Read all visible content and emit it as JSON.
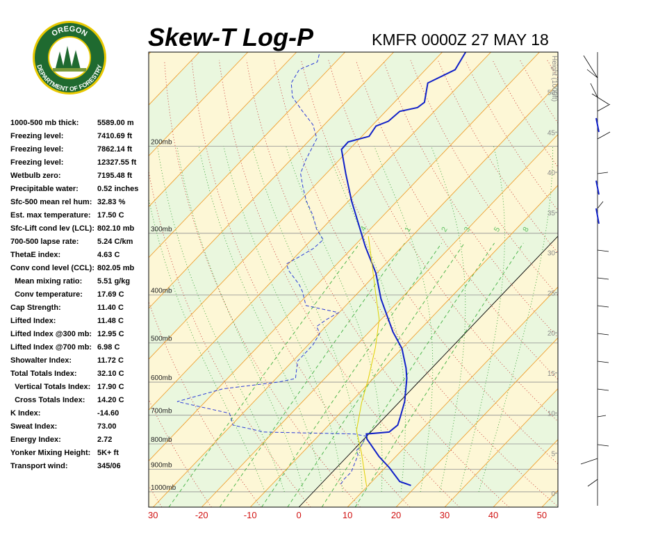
{
  "logo": {
    "top": "OREGON",
    "bottom": "DEPARTMENT OF FORESTRY"
  },
  "stats": [
    [
      "1000-500 mb thick:",
      "5589.00 m"
    ],
    [
      "Freezing level:",
      "7410.69 ft"
    ],
    [
      "Freezing level:",
      "7862.14 ft"
    ],
    [
      "Freezing level:",
      "12327.55 ft"
    ],
    [
      "Wetbulb zero:",
      "7195.48 ft"
    ],
    [
      "Precipitable water:",
      "0.52 inches"
    ],
    [
      "Sfc-500 mean rel hum:",
      "32.83 %"
    ],
    [
      "Est. max temperature:",
      "17.50 C"
    ],
    [
      "Sfc-Lift cond lev (LCL):",
      "802.10 mb"
    ],
    [
      "700-500 lapse rate:",
      "5.24 C/km"
    ],
    [
      "ThetaE index:",
      "4.63 C"
    ],
    [
      "Conv cond level (CCL):",
      "802.05 mb"
    ],
    [
      "  Mean mixing ratio:",
      "5.51 g/kg"
    ],
    [
      "  Conv temperature:",
      "17.69 C"
    ],
    [
      "Cap Strength:",
      "11.40 C"
    ],
    [
      "Lifted Index:",
      "11.48 C"
    ],
    [
      "Lifted Index @300 mb:",
      "12.95 C"
    ],
    [
      "Lifted Index @700 mb:",
      "6.98 C"
    ],
    [
      "Showalter Index:",
      "11.72 C"
    ],
    [
      "Total Totals Index:",
      "32.10 C"
    ],
    [
      "  Vertical Totals Index:",
      "17.90 C"
    ],
    [
      "  Cross Totals Index:",
      "14.20 C"
    ],
    [
      "K Index:",
      "-14.60"
    ],
    [
      "Sweat Index:",
      "73.00"
    ],
    [
      "Energy Index:",
      "2.72"
    ],
    [
      "Yonker Mixing Height:",
      "5K+ ft"
    ],
    [
      "Transport wind:",
      "345/06"
    ]
  ],
  "chart_data": {
    "type": "skew-t",
    "title": "Skew-T Log-P",
    "subtitle": "KMFR 0000Z 27 MAY 18",
    "xlim": [
      -30.9,
      53.3
    ],
    "xticks": [
      {
        "value": -30,
        "label": "30"
      },
      -20,
      -10,
      0,
      10,
      20,
      30,
      40,
      50
    ],
    "ylim": [
      1074,
      129
    ],
    "log_y": true,
    "yticks": [
      {
        "value": 200,
        "label": "200mb"
      },
      {
        "value": 300,
        "label": "300mb"
      },
      {
        "value": 400,
        "label": "400mb"
      },
      {
        "value": 500,
        "label": "500mb"
      },
      {
        "value": 600,
        "label": "600mb"
      },
      {
        "value": 700,
        "label": "700mb"
      },
      {
        "value": 800,
        "label": "800mb"
      },
      {
        "value": 900,
        "label": "900mb"
      },
      {
        "value": 1000,
        "label": "1000mb"
      }
    ],
    "y2_label": "Height (1000ft)",
    "y2lim": [
      -1.73,
      54.98
    ],
    "y2ticks": [
      0,
      5,
      10,
      15,
      20,
      25,
      30,
      35,
      40,
      45,
      50
    ],
    "mixing_ratio_labels": [
      {
        "value": 0.4,
        "label": ".4"
      },
      1,
      2,
      3,
      5,
      8
    ],
    "series": [
      {
        "color": "#1020c8",
        "style": "solid",
        "x": [
          18.8,
          15.7,
          10.8,
          6.5,
          0.6,
          -0.5,
          3.8,
          4.2,
          3.1,
          1.0,
          -3.1,
          -5.3,
          -10.0,
          -15.1,
          -24.1,
          -30.2,
          -37.6,
          -49.4,
          -56.0,
          -61.6,
          -61.7,
          -58.5,
          -59.1,
          -57.5,
          -57.1,
          -54.2,
          -53.8,
          -56.9,
          -53.9,
          -55.2
        ],
        "values": [
          971,
          953,
          893,
          848,
          782,
          764,
          757,
          733,
          705,
          657,
          590,
          562,
          513,
          475,
          407,
          361,
          319,
          258,
          227,
          203,
          196,
          191,
          182,
          178,
          170,
          167,
          163,
          149,
          140,
          129
        ]
      },
      {
        "color": "#2a3ad8",
        "style": "dashed",
        "x": [
          4.1,
          3.8,
          3.9,
          1.9,
          0.7,
          0.8,
          -0.1,
          -2.9,
          -21.9,
          -29.7,
          -32.7,
          -45.8,
          -38.9,
          -28.9,
          -26.0,
          -29.0,
          -29.0,
          -29.9,
          -31.9,
          -31.2,
          -30.1,
          -38.2,
          -41.6,
          -43.7,
          -48.6,
          -50.4,
          -49.2,
          -47.9,
          -47.6,
          -51.1,
          -54.5,
          -58.7,
          -62.1,
          -65.3,
          -66.9,
          -68.8,
          -72.3,
          -77.1,
          -82.0,
          -85.0,
          -86.0,
          -83.8,
          -85.2
        ],
        "values": [
          965,
          943,
          913,
          842,
          824,
          808,
          772,
          764,
          757,
          733,
          694,
          657,
          619,
          600,
          590,
          544,
          505,
          478,
          463,
          448,
          434,
          420,
          394,
          381,
          357,
          346,
          335,
          322,
          309,
          294,
          276,
          258,
          242,
          227,
          213,
          193,
          181,
          170,
          159,
          149,
          140,
          135,
          129
        ]
      },
      {
        "color": "#e0d000",
        "style": "thin",
        "x": [
          9.8,
          1.9,
          -3.2,
          -7.6,
          -11.0,
          -15.7,
          -20.4,
          -26.6,
          -32.8,
          -39.0
        ],
        "values": [
          974,
          829,
          752,
          661,
          590,
          510,
          448,
          394,
          346,
          304
        ]
      }
    ]
  }
}
